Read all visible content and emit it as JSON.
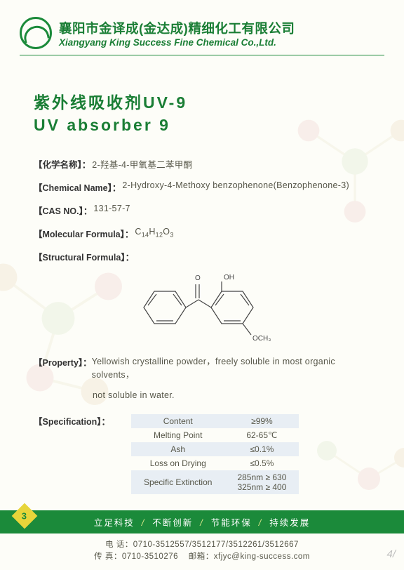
{
  "company": {
    "zh": "襄阳市金译成(金达成)精细化工有限公司",
    "en": "Xiangyang King Success Fine Chemical Co.,Ltd."
  },
  "title": {
    "zh": "紫外线吸收剂UV-9",
    "en": "UV absorber 9"
  },
  "labels": {
    "chem_name_zh": "【化学名称】：",
    "chem_name_en": "【Chemical Name】：",
    "cas_no": "【CAS NO.】：",
    "mol_formula": "【Molecular Formula】：",
    "struct_formula": "【Structural Formula】：",
    "property": "【Property】：",
    "specification": "【Specification】："
  },
  "chem_name": {
    "zh": "2-羟基-4-甲氧基二苯甲酮",
    "en": "2-Hydroxy-4-Methoxy benzophenone(Benzophenone-3)"
  },
  "cas_no": "131-57-7",
  "molecular_formula_html": "C<sub>14</sub>H<sub>12</sub>O<sub>3</sub>",
  "structure_labels": {
    "o": "O",
    "oh": "OH",
    "och3": "OCH₃"
  },
  "property": {
    "line1": "Yellowish crystalline powder，freely soluble in most organic solvents，",
    "line2": "not soluble in water."
  },
  "spec": {
    "rows": [
      {
        "name": "Content",
        "value": "≥99%"
      },
      {
        "name": "Melting Point",
        "value": "62-65℃"
      },
      {
        "name": "Ash",
        "value": "≤0.1%"
      },
      {
        "name": "Loss on Drying",
        "value": "≤0.5%"
      },
      {
        "name": "Specific Extinction",
        "value": "285nm ≥ 630\n325nm ≥ 400"
      }
    ]
  },
  "footer": {
    "slogans": [
      "立足科技",
      "不断创新",
      "节能环保",
      "持续发展"
    ],
    "sep": "/",
    "phone_label": "电  话：",
    "phone": "0710-3512557/3512177/3512261/3512667",
    "fax_label": "传  真：",
    "fax": "0710-3510276",
    "email_label": "邮箱：",
    "email": "xfjyc@king-success.com"
  },
  "page_number": "3",
  "page_corner": "4/",
  "colors": {
    "brand_green": "#1b8a3a",
    "text_olive": "#565648",
    "badge_yellow": "#e7d53a",
    "table_band": "#e8eef4"
  }
}
